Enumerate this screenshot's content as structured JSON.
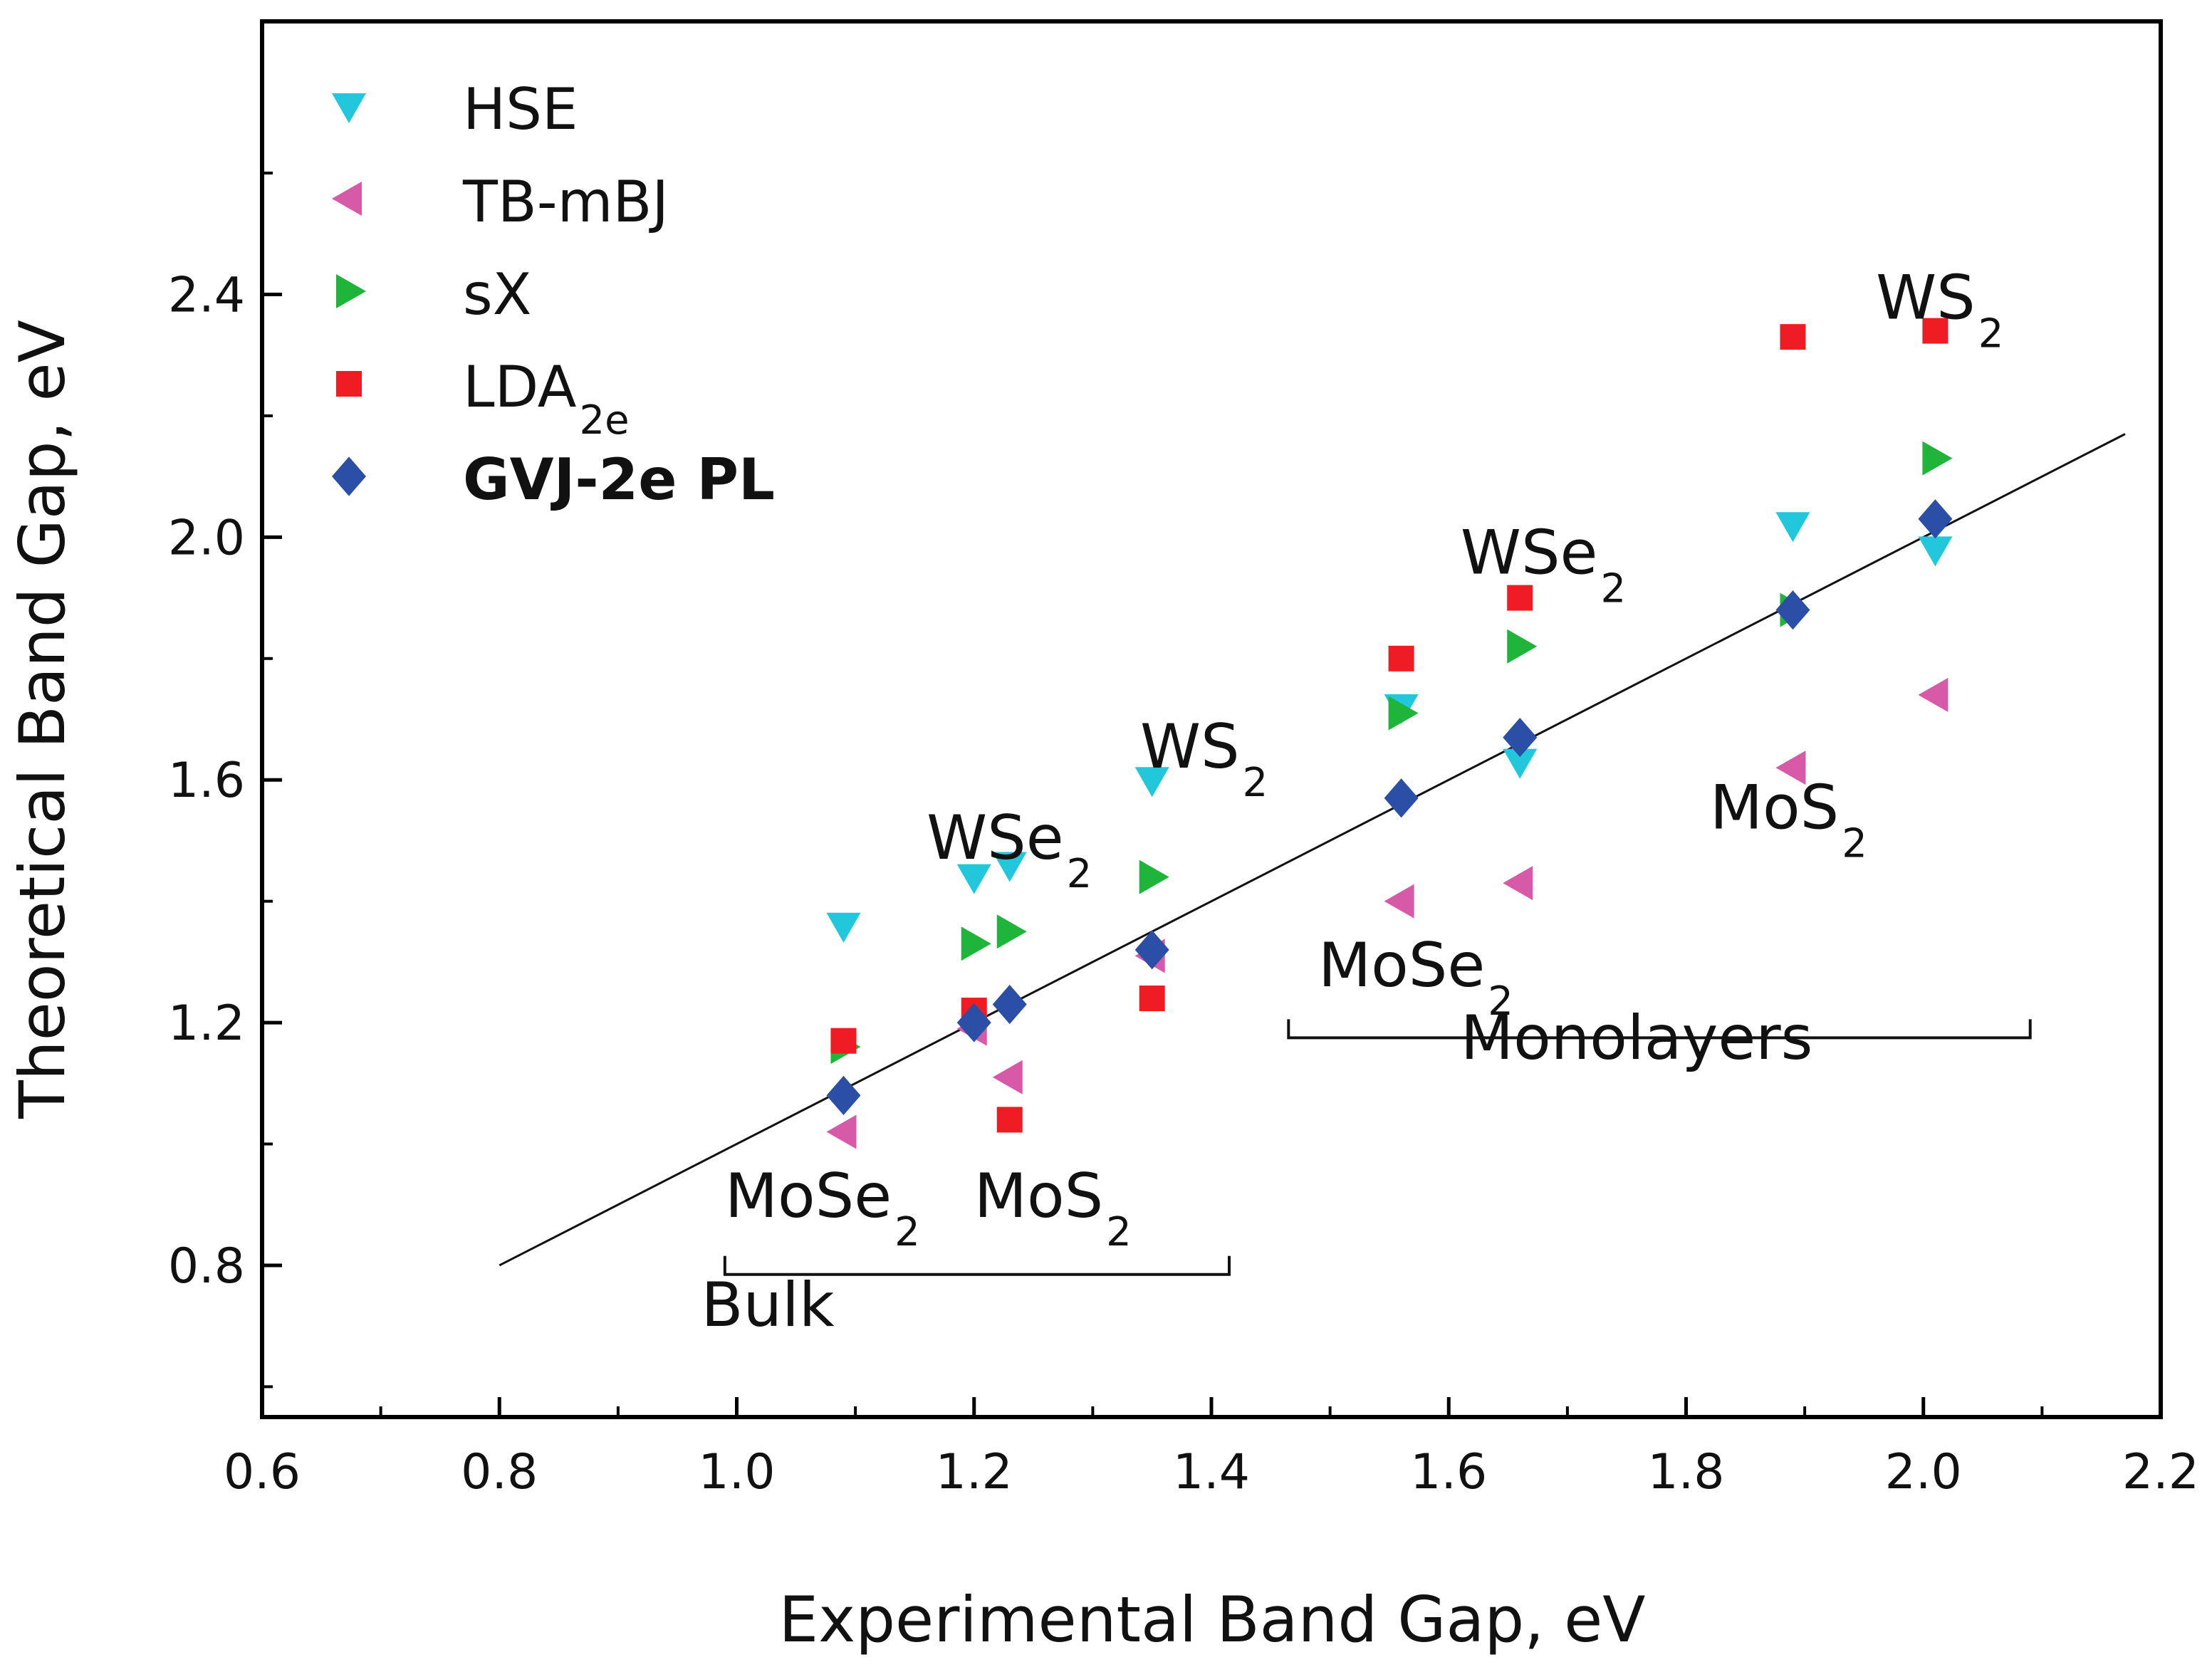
{
  "chart_data": {
    "type": "scatter",
    "title": "",
    "xlabel": "Experimental Band Gap, eV",
    "ylabel": "Theoretical Band Gap, eV",
    "xlim": [
      0.6,
      2.2
    ],
    "ylim": [
      0.55,
      2.85
    ],
    "xticks": [
      0.6,
      0.8,
      1.0,
      1.2,
      1.4,
      1.6,
      1.8,
      2.0,
      2.2
    ],
    "xtick_labels": [
      "0.6",
      "0.8",
      "1.0",
      "1.2",
      "1.4",
      "1.6",
      "1.8",
      "2.0",
      "2.2"
    ],
    "yticks": [
      0.8,
      1.2,
      1.6,
      2.0,
      2.4
    ],
    "ytick_labels": [
      "0.8",
      "1.2",
      "1.6",
      "2.0",
      "2.4"
    ],
    "legend_position": "top-left",
    "series": [
      {
        "name": "HSE",
        "sub": "",
        "bold": false,
        "marker": "triangle-down",
        "color": "#22c7dc",
        "points": [
          [
            1.09,
            1.36
          ],
          [
            1.2,
            1.44
          ],
          [
            1.23,
            1.46
          ],
          [
            1.35,
            1.6
          ],
          [
            1.56,
            1.72
          ],
          [
            1.66,
            1.63
          ],
          [
            1.89,
            2.02
          ],
          [
            2.01,
            1.98
          ]
        ]
      },
      {
        "name": "TB-mBJ",
        "sub": "",
        "bold": false,
        "marker": "triangle-left",
        "color": "#d65aa8",
        "points": [
          [
            1.09,
            1.02
          ],
          [
            1.2,
            1.19
          ],
          [
            1.23,
            1.11
          ],
          [
            1.35,
            1.31
          ],
          [
            1.56,
            1.4
          ],
          [
            1.66,
            1.43
          ],
          [
            1.89,
            1.62
          ],
          [
            2.01,
            1.74
          ]
        ]
      },
      {
        "name": "sX",
        "sub": "",
        "bold": false,
        "marker": "triangle-right",
        "color": "#1fb53a",
        "points": [
          [
            1.09,
            1.16
          ],
          [
            1.2,
            1.33
          ],
          [
            1.23,
            1.35
          ],
          [
            1.35,
            1.44
          ],
          [
            1.56,
            1.71
          ],
          [
            1.66,
            1.82
          ],
          [
            1.89,
            1.88
          ],
          [
            2.01,
            2.13
          ]
        ]
      },
      {
        "name": "LDA",
        "sub": "2e",
        "bold": false,
        "marker": "square",
        "color": "#ef1c24",
        "points": [
          [
            1.09,
            1.17
          ],
          [
            1.2,
            1.22
          ],
          [
            1.23,
            1.04
          ],
          [
            1.35,
            1.24
          ],
          [
            1.56,
            1.8
          ],
          [
            1.66,
            1.9
          ],
          [
            1.89,
            2.33
          ],
          [
            2.01,
            2.34
          ]
        ]
      },
      {
        "name": "GVJ-2e PL",
        "sub": "",
        "bold": true,
        "marker": "diamond",
        "color": "#2b4ea6",
        "points": [
          [
            1.09,
            1.08
          ],
          [
            1.2,
            1.2
          ],
          [
            1.23,
            1.23
          ],
          [
            1.35,
            1.32
          ],
          [
            1.56,
            1.57
          ],
          [
            1.66,
            1.67
          ],
          [
            1.89,
            1.88
          ],
          [
            2.01,
            2.03
          ]
        ]
      }
    ],
    "reference_line": {
      "from": [
        0.8,
        0.8
      ],
      "to": [
        2.17,
        2.17
      ]
    },
    "annotations": [
      {
        "base": "WS",
        "sub": "2",
        "at": [
          1.34,
          1.62
        ]
      },
      {
        "base": "WSe",
        "sub": "2",
        "at": [
          1.16,
          1.47
        ]
      },
      {
        "base": "MoSe",
        "sub": "2",
        "at": [
          0.99,
          0.88
        ]
      },
      {
        "base": "MoS",
        "sub": "2",
        "at": [
          1.2,
          0.88
        ]
      },
      {
        "base": "Bulk",
        "sub": "",
        "at": [
          0.97,
          0.7
        ]
      },
      {
        "base": "MoSe",
        "sub": "2",
        "at": [
          1.49,
          1.26
        ]
      },
      {
        "base": "WSe",
        "sub": "2",
        "at": [
          1.61,
          1.94
        ]
      },
      {
        "base": "MoS",
        "sub": "2",
        "at": [
          1.82,
          1.52
        ]
      },
      {
        "base": "WS",
        "sub": "2",
        "at": [
          1.96,
          2.36
        ]
      },
      {
        "base": "Monolayers",
        "sub": "",
        "at": [
          1.61,
          1.14
        ]
      }
    ],
    "brackets": [
      {
        "label": "Bulk",
        "x_from": 0.99,
        "x_to": 1.415,
        "y": 0.785
      },
      {
        "label": "Monolayers",
        "x_from": 1.465,
        "x_to": 2.09,
        "y": 1.175
      }
    ]
  }
}
